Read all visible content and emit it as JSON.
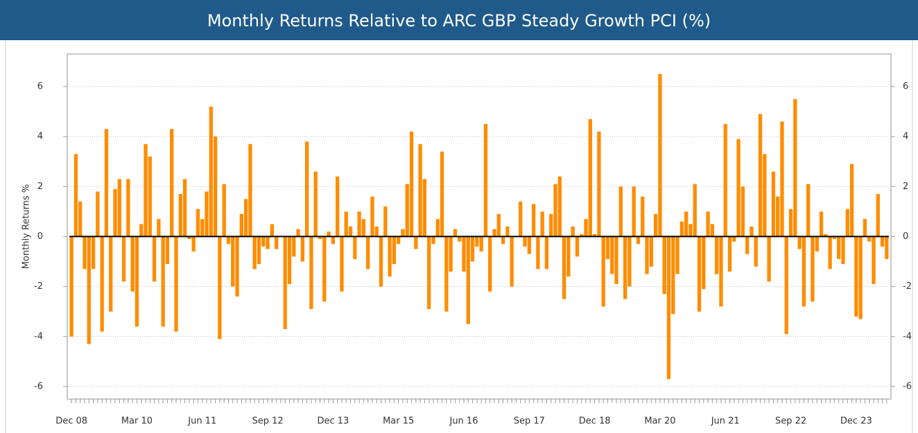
{
  "chart_data": {
    "type": "bar",
    "title": "Monthly Returns Relative to ARC GBP Steady Growth PCI (%)",
    "y_label": "Monthly Returns %",
    "color": "#ff8c00",
    "grid": true,
    "ylim": [
      -6.5,
      7.3
    ],
    "yticks": [
      -6,
      -4,
      -2,
      0,
      2,
      4,
      6
    ],
    "y2lim": [
      -6.5,
      7.3
    ],
    "y2ticks": [
      -6,
      -4,
      -2,
      0,
      2,
      4,
      6
    ],
    "categories": [
      "Dec 08",
      null,
      null,
      null,
      null,
      null,
      null,
      null,
      null,
      null,
      null,
      null,
      null,
      null,
      null,
      "Mar 10",
      null,
      null,
      null,
      null,
      null,
      null,
      null,
      null,
      null,
      null,
      null,
      null,
      null,
      null,
      "Jun 11",
      null,
      null,
      null,
      null,
      null,
      null,
      null,
      null,
      null,
      null,
      null,
      null,
      null,
      null,
      "Sep 12",
      null,
      null,
      null,
      null,
      null,
      null,
      null,
      null,
      null,
      null,
      null,
      null,
      null,
      null,
      "Dec 13",
      null,
      null,
      null,
      null,
      null,
      null,
      null,
      null,
      null,
      null,
      null,
      null,
      null,
      null,
      "Mar 15",
      null,
      null,
      null,
      null,
      null,
      null,
      null,
      null,
      null,
      null,
      null,
      null,
      null,
      null,
      "Jun 16",
      null,
      null,
      null,
      null,
      null,
      null,
      null,
      null,
      null,
      null,
      null,
      null,
      null,
      null,
      "Sep 17",
      null,
      null,
      null,
      null,
      null,
      null,
      null,
      null,
      null,
      null,
      null,
      null,
      null,
      null,
      "Dec 18",
      null,
      null,
      null,
      null,
      null,
      null,
      null,
      null,
      null,
      null,
      null,
      null,
      null,
      null,
      "Mar 20",
      null,
      null,
      null,
      null,
      null,
      null,
      null,
      null,
      null,
      null,
      null,
      null,
      null,
      null,
      "Jun 21",
      null,
      null,
      null,
      null,
      null,
      null,
      null,
      null,
      null,
      null,
      null,
      null,
      null,
      null,
      "Sep 22",
      null,
      null,
      null,
      null,
      null,
      null,
      null,
      null,
      null,
      null,
      null,
      null,
      null,
      null,
      "Dec 23",
      null,
      null,
      null,
      null,
      null,
      null,
      null
    ],
    "values": [
      -4.0,
      3.3,
      1.4,
      -1.3,
      -4.3,
      -1.3,
      1.8,
      -3.8,
      4.3,
      -3.0,
      1.9,
      2.3,
      -1.8,
      2.3,
      -2.2,
      -3.6,
      0.5,
      3.7,
      3.2,
      -1.8,
      0.7,
      -3.6,
      -1.1,
      4.3,
      -3.8,
      1.7,
      2.3,
      -0.1,
      -0.6,
      1.1,
      0.7,
      1.8,
      5.2,
      4.0,
      -4.1,
      2.1,
      -0.3,
      -2.0,
      -2.4,
      0.9,
      1.5,
      3.7,
      -1.3,
      -1.1,
      -0.4,
      -0.5,
      0.5,
      -0.5,
      0.0,
      -3.7,
      -1.9,
      -0.8,
      0.3,
      -1.0,
      3.8,
      -2.9,
      2.6,
      -0.1,
      -2.6,
      0.2,
      -0.3,
      2.4,
      -2.2,
      1.0,
      0.4,
      -0.9,
      1.0,
      0.7,
      -1.3,
      1.6,
      0.4,
      -2.0,
      1.2,
      -1.6,
      -1.1,
      -0.3,
      0.3,
      2.1,
      4.2,
      -0.5,
      3.7,
      2.3,
      -2.9,
      -0.3,
      0.7,
      3.4,
      -3.0,
      -1.4,
      0.3,
      -0.2,
      -1.4,
      -3.5,
      -1.0,
      -0.4,
      -0.6,
      4.5,
      -2.2,
      0.3,
      0.9,
      -0.3,
      0.4,
      -2.0,
      0.0,
      1.4,
      -0.4,
      -0.7,
      1.3,
      -1.3,
      1.0,
      -1.3,
      0.9,
      2.1,
      2.4,
      -2.5,
      -1.6,
      0.4,
      -0.8,
      0.1,
      0.7,
      4.7,
      0.1,
      4.2,
      -2.8,
      -0.9,
      -1.5,
      -1.9,
      2.0,
      -2.5,
      -2.0,
      2.0,
      -0.3,
      1.6,
      -1.5,
      -1.2,
      0.9,
      6.5,
      -2.3,
      -5.7,
      -3.1,
      -1.5,
      0.6,
      1.0,
      0.5,
      2.1,
      -3.0,
      -2.1,
      1.0,
      0.5,
      -1.5,
      -2.8,
      4.5,
      -1.4,
      -0.2,
      3.9,
      2.0,
      -0.7,
      0.4,
      -1.2,
      4.9,
      3.3,
      -1.8,
      2.6,
      1.6,
      4.6,
      -3.9,
      1.1,
      5.5,
      -0.5,
      -2.8,
      2.1,
      -2.6,
      -0.6,
      1.0,
      0.1,
      -1.3,
      -0.1,
      -0.9,
      -1.1,
      1.1,
      2.9,
      -3.2,
      -3.3,
      0.7,
      -0.2,
      -1.9,
      1.7,
      -0.4,
      -0.9
    ]
  }
}
